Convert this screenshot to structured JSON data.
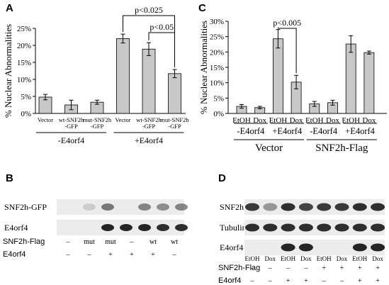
{
  "colors": {
    "bar": "#c8c8c8",
    "bar_edge": "#000000",
    "blot_bg": "#ececec",
    "blot_band": "#1a1a1a"
  },
  "chart_data": [
    {
      "panel": "A",
      "type": "bar",
      "ylabel": "% Nuclear Abnormalities",
      "ylim": [
        0,
        25
      ],
      "yticks": [
        "0%",
        "5%",
        "10%",
        "15%",
        "20%",
        "25%"
      ],
      "grid": false,
      "categories": [
        "Vector",
        "wt-SNF2h -GFP",
        "mut-SNF2h -GFP",
        "Vector",
        "wt-SNF2h -GFP",
        "mut-SNF2h -GFP"
      ],
      "category_lines": [
        [
          "Vector"
        ],
        [
          "wt-SNF2h",
          "-GFP"
        ],
        [
          "mut-SNF2h",
          "-GFP"
        ],
        [
          "Vector"
        ],
        [
          "wt-SNF2h",
          "-GFP"
        ],
        [
          "mut-SNF2h",
          "-GFP"
        ]
      ],
      "values": [
        4.8,
        2.5,
        3.3,
        22.0,
        18.9,
        11.7
      ],
      "errors": [
        0.8,
        1.4,
        0.6,
        1.3,
        1.9,
        1.2
      ],
      "groups": [
        {
          "label": "-E4orf4",
          "from": 0,
          "to": 2
        },
        {
          "label": "+E4orf4",
          "from": 3,
          "to": 5
        }
      ],
      "annotations": [
        {
          "text": "p<0.025",
          "from": 3,
          "to": 5
        },
        {
          "text": "p<0.05",
          "from": 4,
          "to": 5
        }
      ]
    },
    {
      "panel": "C",
      "type": "bar",
      "ylabel": "% Nuclear Abnormalities",
      "ylim": [
        0,
        30
      ],
      "yticks": [
        "0%",
        "5%",
        "10%",
        "15%",
        "20%",
        "25%",
        "30%"
      ],
      "grid": false,
      "categories": [
        "EtOH",
        "Dox",
        "EtOH",
        "Dox",
        "EtOH",
        "Dox",
        "EtOH",
        "Dox"
      ],
      "values": [
        2.3,
        1.9,
        24.3,
        10.2,
        3.1,
        3.5,
        22.6,
        19.8
      ],
      "errors": [
        0.6,
        0.4,
        3.0,
        2.2,
        0.8,
        0.8,
        2.7,
        0.5
      ],
      "groups": [
        {
          "label": "-E4orf4",
          "from": 0,
          "to": 1
        },
        {
          "label": "+E4orf4",
          "from": 2,
          "to": 3
        },
        {
          "label": "-E4orf4",
          "from": 4,
          "to": 5
        },
        {
          "label": "+E4orf4",
          "from": 6,
          "to": 7
        }
      ],
      "supergroups": [
        {
          "label": "Vector",
          "from": 0,
          "to": 3
        },
        {
          "label": "SNF2h-Flag",
          "from": 4,
          "to": 7
        }
      ],
      "annotations": [
        {
          "text": "p<0.005",
          "from": 2,
          "to": 3
        }
      ]
    }
  ],
  "blots": [
    {
      "panel": "B",
      "rows": [
        "SNF2h-GFP",
        "E4orf4"
      ],
      "conditions": [
        {
          "label": "SNF2h-Flag",
          "values": [
            "–",
            "mut",
            "mut",
            "–",
            "wt",
            "wt"
          ]
        },
        {
          "label": "E4orf4",
          "values": [
            "–",
            "–",
            "+",
            "+",
            "+",
            "–"
          ]
        }
      ]
    },
    {
      "panel": "D",
      "rows": [
        "SNF2h",
        "Tubulin",
        "E4orf4"
      ],
      "lane_labels": [
        "EtOH",
        "Dox",
        "EtOH",
        "Dox",
        "EtOH",
        "Dox",
        "EtOH",
        "Dox"
      ],
      "conditions": [
        {
          "label": "SNF2h-Flag",
          "values": [
            "–",
            "–",
            "–",
            "–",
            "+",
            "+",
            "+",
            "+"
          ]
        },
        {
          "label": "E4orf4",
          "values": [
            "–",
            "–",
            "+",
            "+",
            "–",
            "–",
            "+",
            "+"
          ]
        }
      ]
    }
  ]
}
